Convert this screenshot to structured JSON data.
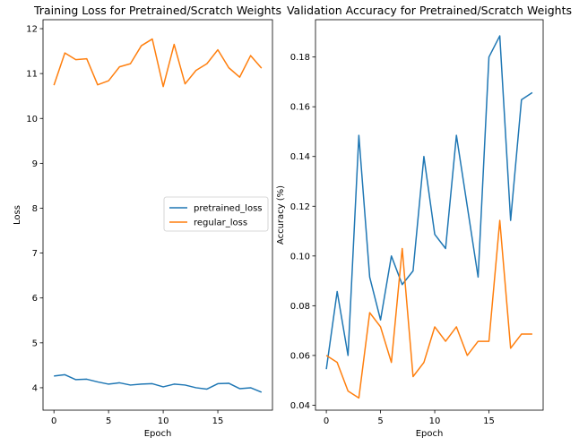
{
  "chart_data": [
    {
      "type": "line",
      "title": "Training Loss for Pretrained/Scratch Weights",
      "xlabel": "Epoch",
      "ylabel": "Loss",
      "xlim": [
        -1,
        20
      ],
      "ylim": [
        3.5,
        12.2
      ],
      "xticks": [
        0,
        5,
        10,
        15
      ],
      "yticks": [
        4,
        5,
        6,
        7,
        8,
        9,
        10,
        11,
        12
      ],
      "grid": false,
      "legend": "center-right",
      "x": [
        0,
        1,
        2,
        3,
        4,
        5,
        6,
        7,
        8,
        9,
        10,
        11,
        12,
        13,
        14,
        15,
        16,
        17,
        18,
        19
      ],
      "series": [
        {
          "name": "pretrained_loss",
          "color": "#1f77b4",
          "values": [
            4.26,
            4.29,
            4.18,
            4.19,
            4.13,
            4.08,
            4.11,
            4.06,
            4.08,
            4.09,
            4.02,
            4.08,
            4.06,
            4.0,
            3.97,
            4.09,
            4.1,
            3.98,
            4.0,
            3.9
          ]
        },
        {
          "name": "regular_loss",
          "color": "#ff7f0e",
          "values": [
            10.74,
            11.46,
            11.31,
            11.33,
            10.75,
            10.84,
            11.15,
            11.22,
            11.62,
            11.77,
            10.71,
            11.65,
            10.77,
            11.07,
            11.22,
            11.53,
            11.13,
            10.92,
            11.4,
            11.12
          ]
        }
      ]
    },
    {
      "type": "line",
      "title": "Validation Accuracy for Pretrained/Scratch Weights",
      "xlabel": "Epoch",
      "ylabel": "Accuracy (%)",
      "xlim": [
        -1,
        20
      ],
      "ylim": [
        0.038,
        0.195
      ],
      "xticks": [
        0,
        5,
        10,
        15
      ],
      "yticks": [
        0.04,
        0.06,
        0.08,
        0.1,
        0.12,
        0.14,
        0.16,
        0.18
      ],
      "grid": false,
      "x": [
        0,
        1,
        2,
        3,
        4,
        5,
        6,
        7,
        8,
        9,
        10,
        11,
        12,
        13,
        14,
        15,
        16,
        17,
        18,
        19
      ],
      "series": [
        {
          "color": "#1f77b4",
          "values": [
            0.0545,
            0.0857,
            0.06,
            0.1485,
            0.0915,
            0.0743,
            0.1,
            0.0885,
            0.094,
            0.14,
            0.1087,
            0.103,
            0.1485,
            0.12,
            0.0915,
            0.18,
            0.1885,
            0.1143,
            0.1628,
            0.1657
          ]
        },
        {
          "color": "#ff7f0e",
          "values": [
            0.06,
            0.0572,
            0.0457,
            0.0429,
            0.0772,
            0.0715,
            0.0572,
            0.103,
            0.0515,
            0.0572,
            0.0715,
            0.0657,
            0.0715,
            0.06,
            0.0657,
            0.0657,
            0.1143,
            0.0629,
            0.0686,
            0.0686
          ]
        }
      ]
    }
  ]
}
